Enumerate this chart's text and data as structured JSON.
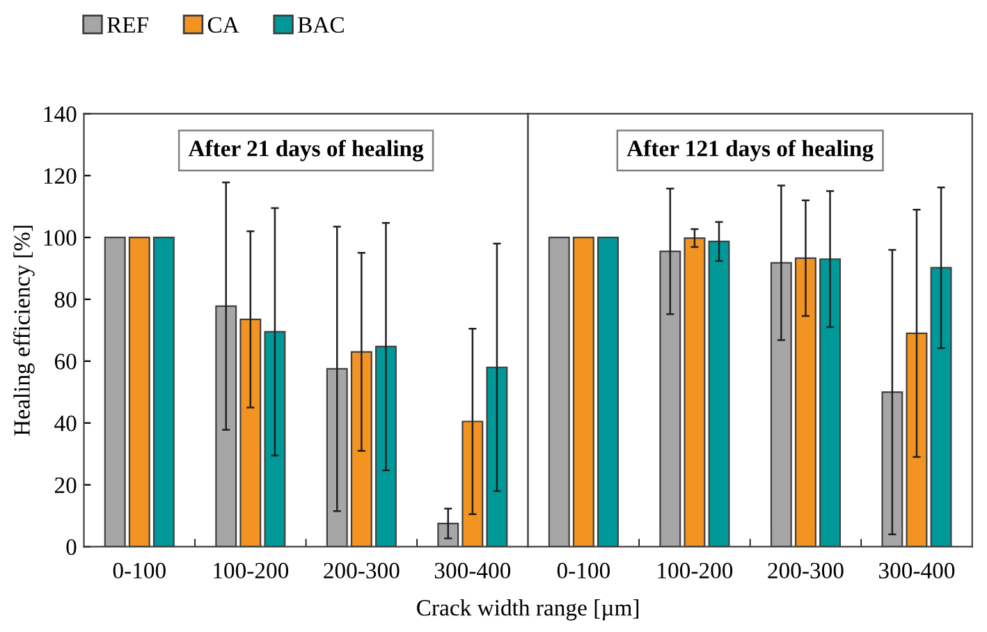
{
  "chart_data": [
    {
      "type": "bar",
      "categories": [
        "0-100",
        "100-200",
        "200-300",
        "300-400"
      ],
      "xlabel": "Crack width range [µm]",
      "ylabel": "Healing efficiency [%]",
      "ylim": [
        0,
        140
      ],
      "yticks": [
        0,
        20,
        40,
        60,
        80,
        100,
        120,
        140
      ],
      "legend": "top left",
      "annotations": [
        "After 21 days of healing"
      ],
      "series": [
        {
          "name": "REF",
          "color": "#a6a6a6",
          "values": [
            100,
            77.8,
            57.5,
            7.5
          ],
          "errors": [
            null,
            40,
            46,
            4.8
          ]
        },
        {
          "name": "CA",
          "color": "#f39422",
          "values": [
            100,
            73.5,
            63,
            40.5
          ],
          "errors": [
            null,
            28.5,
            32,
            30
          ]
        },
        {
          "name": "BAC",
          "color": "#009999",
          "values": [
            100,
            69.5,
            64.7,
            58
          ],
          "errors": [
            null,
            40,
            40,
            40
          ]
        }
      ]
    },
    {
      "type": "bar",
      "categories": [
        "0-100",
        "100-200",
        "200-300",
        "300-400"
      ],
      "ylim": [
        0,
        140
      ],
      "tick_labels": "x",
      "annotations": [
        "After 121 days of healing"
      ],
      "series": [
        {
          "color": "#a6a6a6",
          "values": [
            100,
            95.5,
            91.8,
            50
          ],
          "errors": [
            null,
            20.3,
            25,
            46
          ]
        },
        {
          "color": "#f39422",
          "values": [
            100,
            99.8,
            93.3,
            69
          ],
          "errors": [
            null,
            2.9,
            18.7,
            40
          ]
        },
        {
          "color": "#009999",
          "values": [
            100,
            98.7,
            93,
            90.2
          ],
          "errors": [
            null,
            6.3,
            22,
            26
          ]
        }
      ]
    }
  ]
}
